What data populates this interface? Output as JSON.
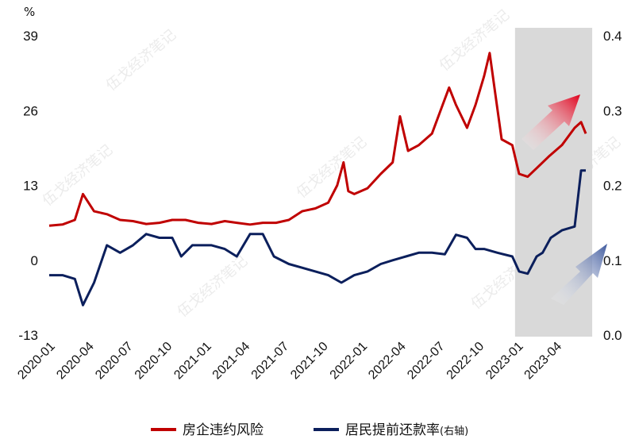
{
  "chart_data": {
    "type": "line",
    "unit_left": "%",
    "x_ticks": [
      "2020-01",
      "2020-04",
      "2020-07",
      "2020-10",
      "2021-01",
      "2021-04",
      "2021-07",
      "2021-10",
      "2022-01",
      "2022-04",
      "2022-07",
      "2022-10",
      "2023-01",
      "2023-04"
    ],
    "y_left": {
      "min": -13,
      "max": 39,
      "ticks": [
        "39",
        "26",
        "13",
        "0",
        "-13"
      ]
    },
    "y_right": {
      "min": 0.0,
      "max": 0.4,
      "ticks": [
        "0.4",
        "0.3",
        "0.2",
        "0.1",
        "0.0"
      ]
    },
    "highlight_range": [
      "2023-01",
      "2023-06"
    ],
    "series": [
      {
        "name": "房企违约风险",
        "axis": "left",
        "color": "#c00000",
        "points": [
          [
            "2020-01-01",
            6
          ],
          [
            "2020-02-01",
            6.2
          ],
          [
            "2020-03-01",
            7
          ],
          [
            "2020-03-20",
            11.5
          ],
          [
            "2020-04-15",
            8.5
          ],
          [
            "2020-05-15",
            8
          ],
          [
            "2020-06-15",
            7
          ],
          [
            "2020-07-15",
            6.8
          ],
          [
            "2020-08-15",
            6.3
          ],
          [
            "2020-09-15",
            6.5
          ],
          [
            "2020-10-15",
            7
          ],
          [
            "2020-11-15",
            7
          ],
          [
            "2020-12-15",
            6.5
          ],
          [
            "2021-01-15",
            6.3
          ],
          [
            "2021-02-15",
            6.8
          ],
          [
            "2021-03-15",
            6.5
          ],
          [
            "2021-04-15",
            6.2
          ],
          [
            "2021-05-15",
            6.5
          ],
          [
            "2021-06-15",
            6.5
          ],
          [
            "2021-07-15",
            7
          ],
          [
            "2021-08-15",
            8.5
          ],
          [
            "2021-09-15",
            9
          ],
          [
            "2021-10-15",
            10
          ],
          [
            "2021-11-05",
            13
          ],
          [
            "2021-11-20",
            17
          ],
          [
            "2021-12-01",
            12
          ],
          [
            "2021-12-15",
            11.5
          ],
          [
            "2022-01-15",
            12.5
          ],
          [
            "2022-02-15",
            15
          ],
          [
            "2022-03-15",
            17
          ],
          [
            "2022-04-01",
            25
          ],
          [
            "2022-04-20",
            19
          ],
          [
            "2022-05-15",
            20
          ],
          [
            "2022-06-15",
            22
          ],
          [
            "2022-07-10",
            27
          ],
          [
            "2022-07-25",
            30
          ],
          [
            "2022-08-10",
            27
          ],
          [
            "2022-09-05",
            23
          ],
          [
            "2022-09-25",
            27
          ],
          [
            "2022-10-15",
            32
          ],
          [
            "2022-10-28",
            36
          ],
          [
            "2022-11-10",
            29
          ],
          [
            "2022-11-25",
            21
          ],
          [
            "2022-12-20",
            20
          ],
          [
            "2023-01-05",
            15
          ],
          [
            "2023-01-25",
            14.5
          ],
          [
            "2023-02-15",
            16
          ],
          [
            "2023-03-15",
            18
          ],
          [
            "2023-04-15",
            20
          ],
          [
            "2023-05-15",
            23
          ],
          [
            "2023-05-30",
            24
          ],
          [
            "2023-06-10",
            22
          ]
        ]
      },
      {
        "name": "居民提前还款率",
        "axis": "right",
        "color": "#0b1f5c",
        "points": [
          [
            "2020-01-01",
            0.08
          ],
          [
            "2020-02-01",
            0.08
          ],
          [
            "2020-03-01",
            0.075
          ],
          [
            "2020-03-20",
            0.04
          ],
          [
            "2020-04-15",
            0.07
          ],
          [
            "2020-05-15",
            0.12
          ],
          [
            "2020-06-15",
            0.11
          ],
          [
            "2020-07-15",
            0.12
          ],
          [
            "2020-08-15",
            0.135
          ],
          [
            "2020-09-15",
            0.13
          ],
          [
            "2020-10-15",
            0.13
          ],
          [
            "2020-11-05",
            0.105
          ],
          [
            "2020-12-01",
            0.12
          ],
          [
            "2021-01-15",
            0.12
          ],
          [
            "2021-02-15",
            0.115
          ],
          [
            "2021-03-15",
            0.105
          ],
          [
            "2021-04-15",
            0.135
          ],
          [
            "2021-05-15",
            0.135
          ],
          [
            "2021-06-10",
            0.105
          ],
          [
            "2021-07-15",
            0.095
          ],
          [
            "2021-08-15",
            0.09
          ],
          [
            "2021-09-15",
            0.085
          ],
          [
            "2021-10-15",
            0.08
          ],
          [
            "2021-11-15",
            0.07
          ],
          [
            "2021-12-15",
            0.08
          ],
          [
            "2022-01-15",
            0.085
          ],
          [
            "2022-02-15",
            0.095
          ],
          [
            "2022-03-15",
            0.1
          ],
          [
            "2022-04-15",
            0.105
          ],
          [
            "2022-05-15",
            0.11
          ],
          [
            "2022-06-15",
            0.11
          ],
          [
            "2022-07-15",
            0.108
          ],
          [
            "2022-08-10",
            0.134
          ],
          [
            "2022-09-05",
            0.13
          ],
          [
            "2022-09-25",
            0.115
          ],
          [
            "2022-10-15",
            0.115
          ],
          [
            "2022-11-15",
            0.11
          ],
          [
            "2022-12-20",
            0.105
          ],
          [
            "2023-01-05",
            0.085
          ],
          [
            "2023-01-25",
            0.082
          ],
          [
            "2023-02-15",
            0.105
          ],
          [
            "2023-03-01",
            0.11
          ],
          [
            "2023-03-20",
            0.13
          ],
          [
            "2023-04-15",
            0.14
          ],
          [
            "2023-05-15",
            0.145
          ],
          [
            "2023-05-30",
            0.22
          ],
          [
            "2023-06-10",
            0.22
          ]
        ]
      }
    ],
    "legend": {
      "position": "bottom",
      "items": [
        {
          "label": "房企违约风险",
          "suffix": "",
          "color": "#c00000"
        },
        {
          "label": "居民提前还款率",
          "suffix": "(右轴)",
          "color": "#0b1f5c"
        }
      ]
    },
    "watermark": "伍戈经济笔记"
  }
}
